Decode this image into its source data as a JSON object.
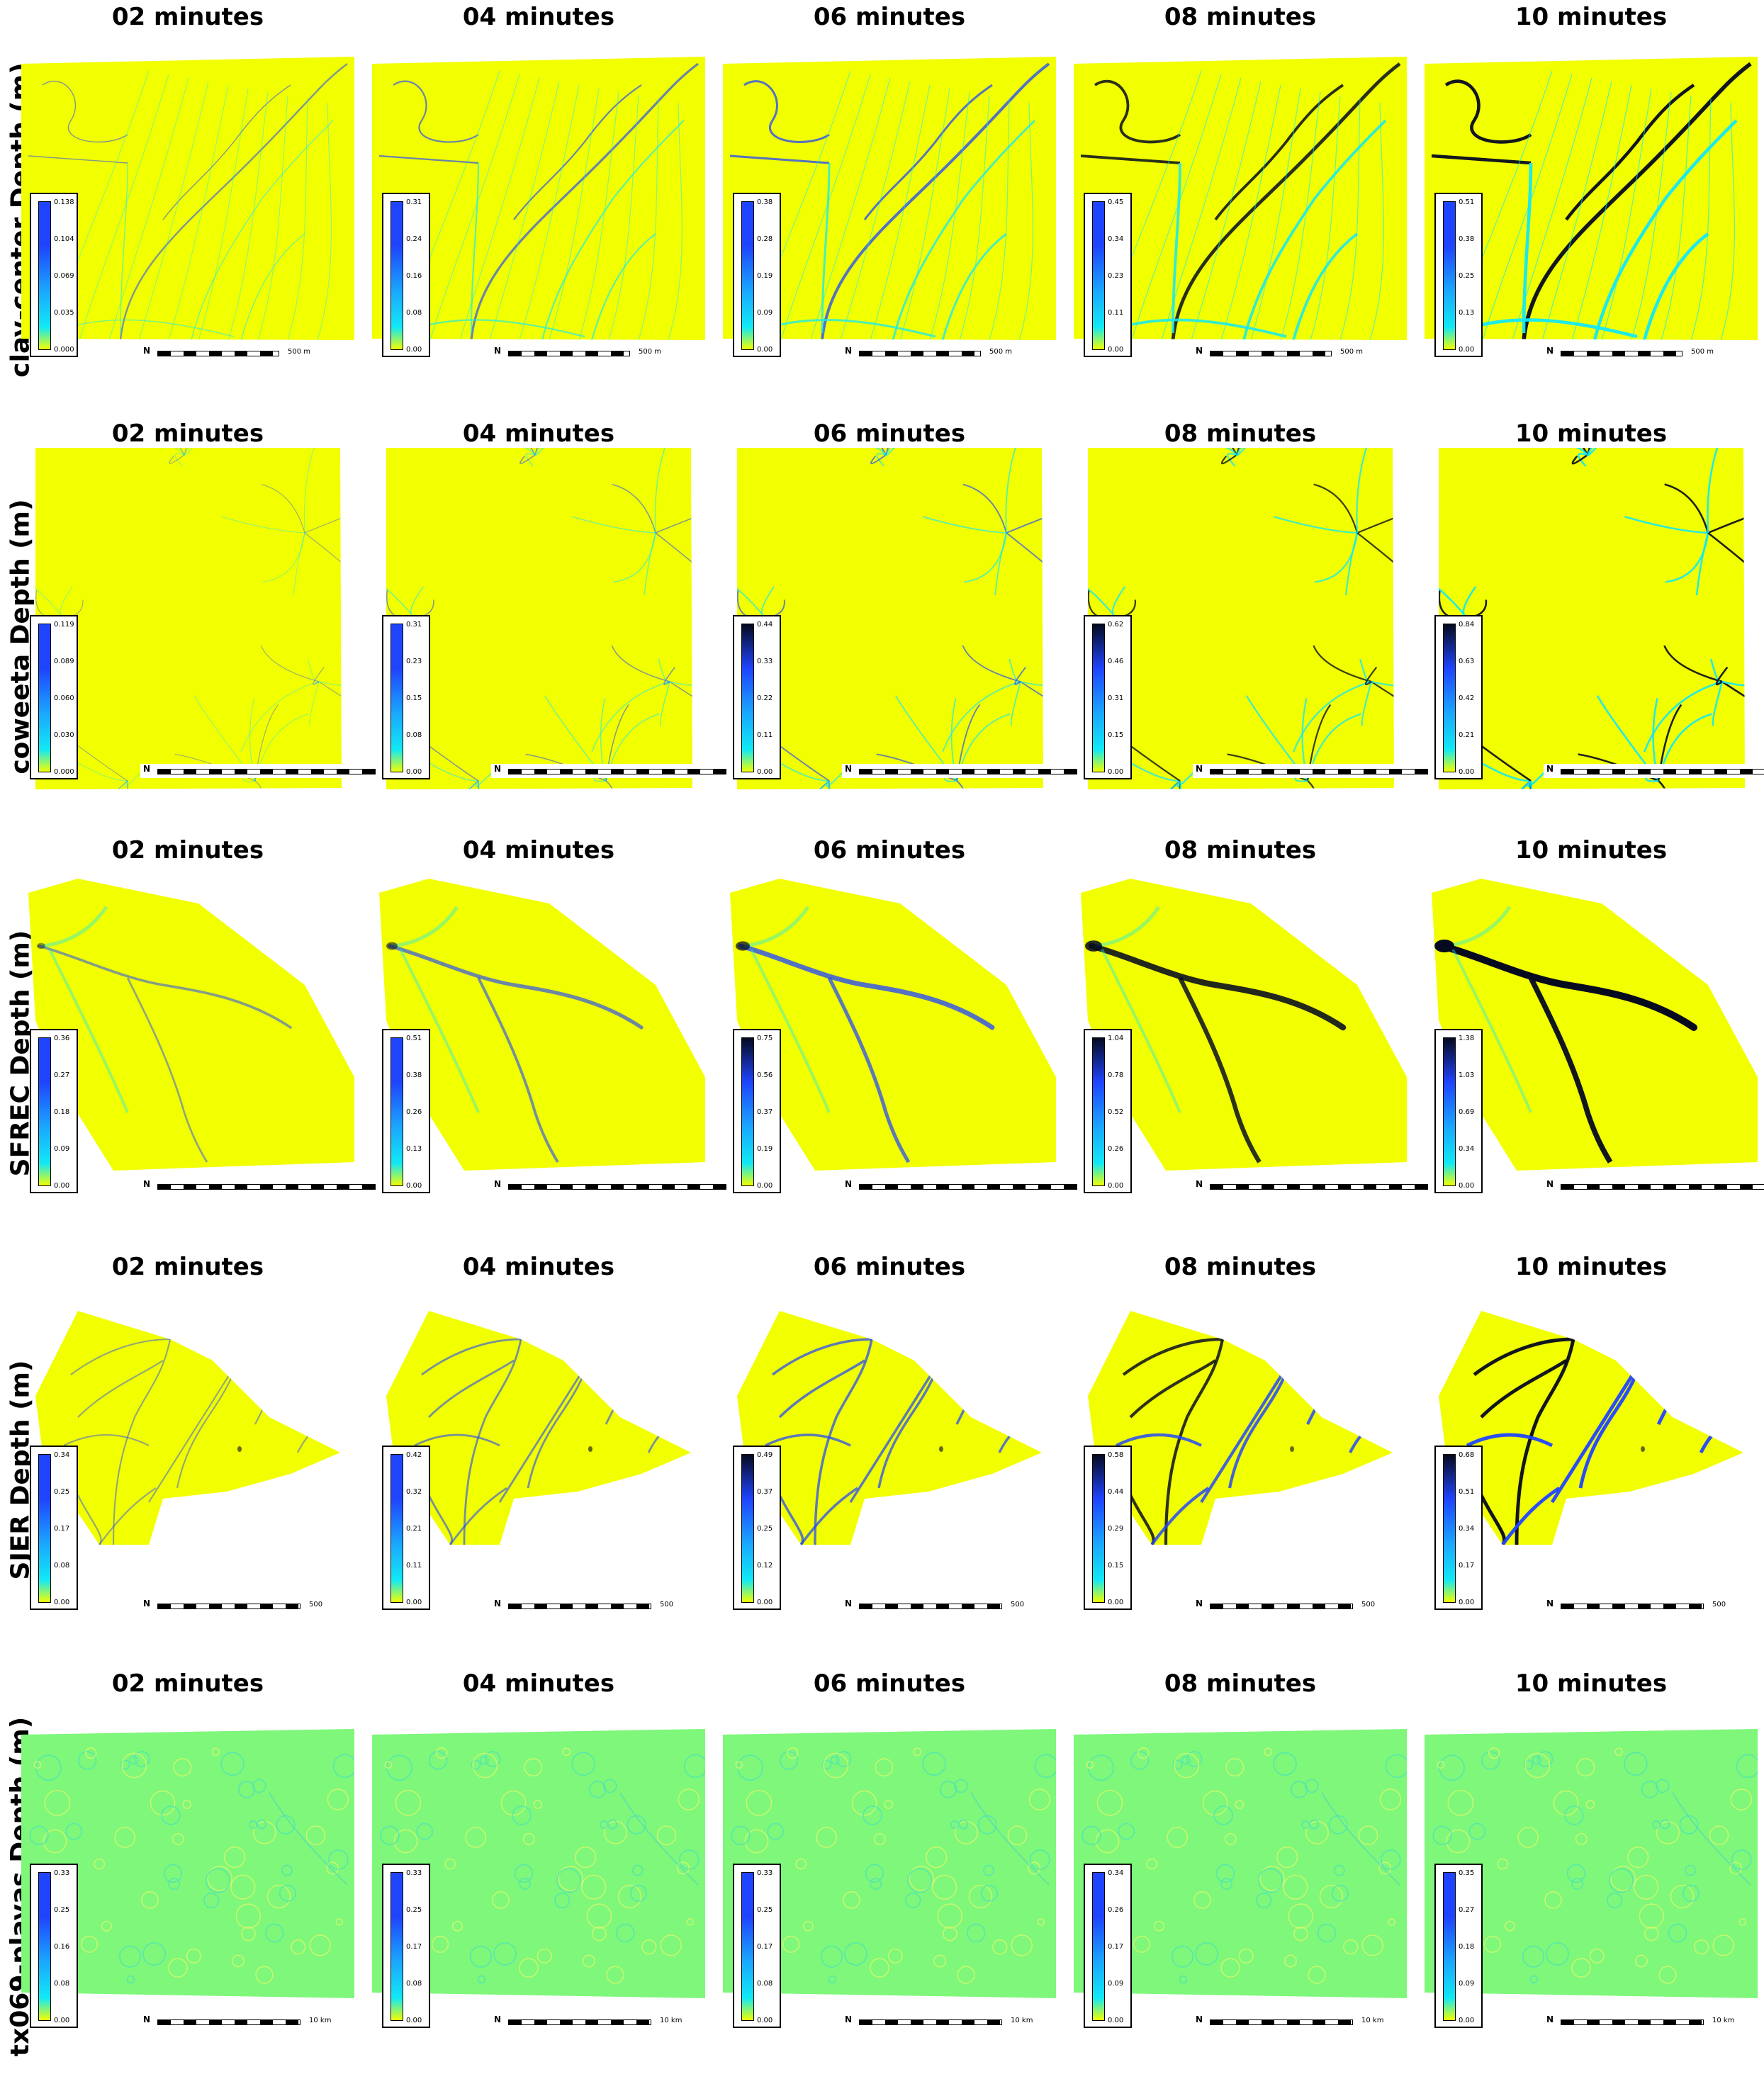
{
  "colors": {
    "low": "#f2ff00",
    "mid": "#11e9f5",
    "high": "#1f44ff",
    "peak": "#050a1f",
    "playa": "#7ef77a"
  },
  "time_titles": [
    "02 minutes",
    "04 minutes",
    "06 minutes",
    "08 minutes",
    "10 minutes"
  ],
  "north_symbol": "N",
  "rows": [
    {
      "label": "clay-center Depth (m)",
      "scale_label": "500 m",
      "shape": "clay",
      "legends": [
        [
          "0.138",
          "0.104",
          "0.069",
          "0.035",
          "0.000"
        ],
        [
          "0.31",
          "0.24",
          "0.16",
          "0.08",
          "0.00"
        ],
        [
          "0.38",
          "0.28",
          "0.19",
          "0.09",
          "0.00"
        ],
        [
          "0.45",
          "0.34",
          "0.23",
          "0.11",
          "0.00"
        ],
        [
          "0.51",
          "0.38",
          "0.25",
          "0.13",
          "0.00"
        ]
      ]
    },
    {
      "label": "coweeta Depth (m)",
      "scale_label": "",
      "shape": "cow",
      "legends": [
        [
          "0.119",
          "0.089",
          "0.060",
          "0.030",
          "0.000"
        ],
        [
          "0.31",
          "0.23",
          "0.15",
          "0.08",
          "0.00"
        ],
        [
          "0.44",
          "0.33",
          "0.22",
          "0.11",
          "0.00"
        ],
        [
          "0.62",
          "0.46",
          "0.31",
          "0.15",
          "0.00"
        ],
        [
          "0.84",
          "0.63",
          "0.42",
          "0.21",
          "0.00"
        ]
      ]
    },
    {
      "label": "SFREC Depth (m)",
      "scale_label": "",
      "shape": "sfrec",
      "legends": [
        [
          "0.36",
          "0.27",
          "0.18",
          "0.09",
          "0.00"
        ],
        [
          "0.51",
          "0.38",
          "0.26",
          "0.13",
          "0.00"
        ],
        [
          "0.75",
          "0.56",
          "0.37",
          "0.19",
          "0.00"
        ],
        [
          "1.04",
          "0.78",
          "0.52",
          "0.26",
          "0.00"
        ],
        [
          "1.38",
          "1.03",
          "0.69",
          "0.34",
          "0.00"
        ]
      ]
    },
    {
      "label": "SJER Depth (m)",
      "scale_label": "500",
      "shape": "sjer",
      "legends": [
        [
          "0.34",
          "0.25",
          "0.17",
          "0.08",
          "0.00"
        ],
        [
          "0.42",
          "0.32",
          "0.21",
          "0.11",
          "0.00"
        ],
        [
          "0.49",
          "0.37",
          "0.25",
          "0.12",
          "0.00"
        ],
        [
          "0.58",
          "0.44",
          "0.29",
          "0.15",
          "0.00"
        ],
        [
          "0.68",
          "0.51",
          "0.34",
          "0.17",
          "0.00"
        ]
      ]
    },
    {
      "label": "tx069-playas Depth (m)",
      "scale_label": "10 km",
      "shape": "tx",
      "legends": [
        [
          "0.33",
          "0.25",
          "0.16",
          "0.08",
          "0.00"
        ],
        [
          "0.33",
          "0.25",
          "0.17",
          "0.08",
          "0.00"
        ],
        [
          "0.33",
          "0.25",
          "0.17",
          "0.08",
          "0.00"
        ],
        [
          "0.34",
          "0.26",
          "0.17",
          "0.09",
          "0.00"
        ],
        [
          "0.35",
          "0.27",
          "0.18",
          "0.09",
          "0.00"
        ]
      ]
    }
  ]
}
